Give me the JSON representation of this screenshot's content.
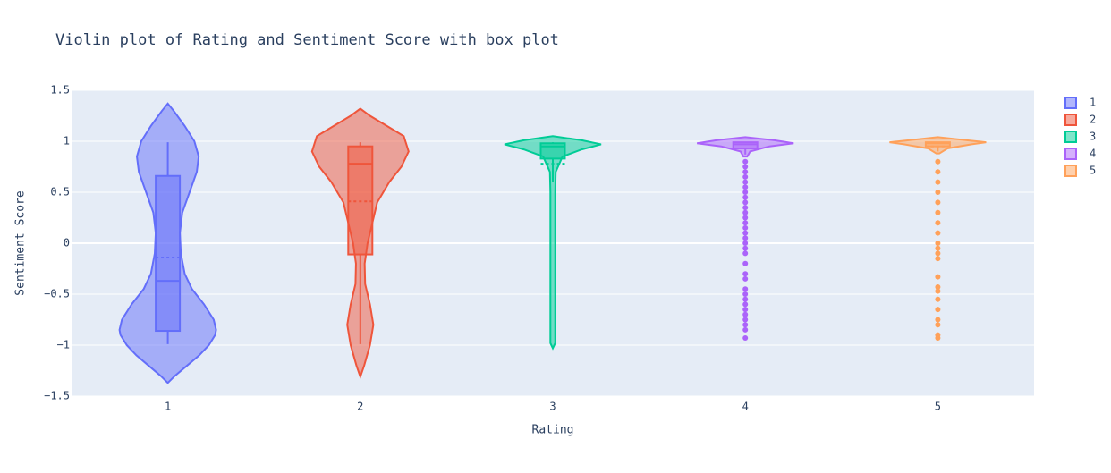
{
  "chart_data": {
    "type": "violin",
    "title": "Violin plot of Rating and Sentiment Score with box plot",
    "x_label": "Rating",
    "y_label": "Sentiment Score",
    "categories": [
      "1",
      "2",
      "3",
      "4",
      "5"
    ],
    "ylim": [
      -1.5,
      1.5
    ],
    "yticks": [
      1.5,
      1,
      0.5,
      0,
      {
        "value": -0.5,
        "label": "−0.5"
      },
      {
        "value": -1,
        "label": "−1"
      },
      {
        "value": -1.5,
        "label": "−1.5"
      }
    ],
    "grid": true,
    "legend": "top-right",
    "series": [
      {
        "name": "1",
        "color": "#636efa",
        "violin_y": [
          -1.37,
          -1.3,
          -1.2,
          -1.1,
          -1.0,
          -0.9,
          -0.85,
          -0.75,
          -0.6,
          -0.45,
          -0.3,
          -0.1,
          0.1,
          0.3,
          0.5,
          0.7,
          0.85,
          1.0,
          1.15,
          1.3,
          1.37
        ],
        "violin_width": [
          0,
          0.15,
          0.4,
          0.65,
          0.85,
          0.98,
          1.0,
          0.95,
          0.75,
          0.5,
          0.35,
          0.27,
          0.25,
          0.3,
          0.45,
          0.6,
          0.64,
          0.55,
          0.35,
          0.12,
          0
        ],
        "min": -0.99,
        "q1": -0.86,
        "median": -0.37,
        "q3": 0.66,
        "max": 0.99,
        "mean": -0.14,
        "outliers": []
      },
      {
        "name": "2",
        "color": "#EF553B",
        "violin_y": [
          -1.31,
          -1.2,
          -1.0,
          -0.8,
          -0.6,
          -0.4,
          -0.2,
          0,
          0.2,
          0.4,
          0.6,
          0.75,
          0.9,
          1.05,
          1.15,
          1.25,
          1.32
        ],
        "violin_width": [
          0,
          0.08,
          0.2,
          0.27,
          0.2,
          0.1,
          0.09,
          0.15,
          0.25,
          0.35,
          0.6,
          0.85,
          1.0,
          0.9,
          0.55,
          0.2,
          0
        ],
        "min": -0.99,
        "q1": -0.11,
        "median": 0.78,
        "q3": 0.95,
        "max": 0.99,
        "mean": 0.41,
        "outliers": []
      },
      {
        "name": "3",
        "color": "#00cc96",
        "violin_y": [
          -1.03,
          -0.98,
          -0.9,
          0.5,
          0.7,
          0.85,
          0.92,
          0.97,
          1.01,
          1.05
        ],
        "violin_width": [
          0,
          0.05,
          0.05,
          0.05,
          0.06,
          0.2,
          0.6,
          1.0,
          0.6,
          0
        ],
        "min": 0.6,
        "q1": 0.83,
        "median": 0.95,
        "q3": 0.98,
        "max": 0.99,
        "mean": 0.78,
        "outliers": []
      },
      {
        "name": "4",
        "color": "#ab63fa",
        "violin_y": [
          0.85,
          0.9,
          0.95,
          0.98,
          1.01,
          1.04
        ],
        "violin_width": [
          0.04,
          0.1,
          0.5,
          1.0,
          0.6,
          0
        ],
        "min": 0.87,
        "q1": 0.93,
        "median": 0.97,
        "q3": 0.99,
        "max": 0.99,
        "mean": 0.93,
        "outliers": [
          0.8,
          0.75,
          0.7,
          0.65,
          0.6,
          0.55,
          0.5,
          0.45,
          0.4,
          0.35,
          0.3,
          0.25,
          0.2,
          0.15,
          0.1,
          0.05,
          0,
          -0.05,
          -0.1,
          -0.2,
          -0.3,
          -0.35,
          -0.45,
          -0.5,
          -0.55,
          -0.6,
          -0.65,
          -0.7,
          -0.75,
          -0.8,
          -0.85,
          -0.93
        ]
      },
      {
        "name": "5",
        "color": "#FFA15A",
        "violin_y": [
          0.88,
          0.93,
          0.97,
          0.99,
          1.01,
          1.04
        ],
        "violin_width": [
          0.03,
          0.2,
          0.7,
          1.0,
          0.6,
          0
        ],
        "min": 0.9,
        "q1": 0.95,
        "median": 0.98,
        "q3": 0.99,
        "max": 0.99,
        "mean": 0.95,
        "outliers": [
          0.8,
          0.7,
          0.6,
          0.5,
          0.4,
          0.3,
          0.2,
          0.1,
          0,
          -0.05,
          -0.1,
          -0.15,
          -0.33,
          -0.43,
          -0.47,
          -0.55,
          -0.65,
          -0.75,
          -0.8,
          -0.9,
          -0.93
        ]
      }
    ]
  }
}
